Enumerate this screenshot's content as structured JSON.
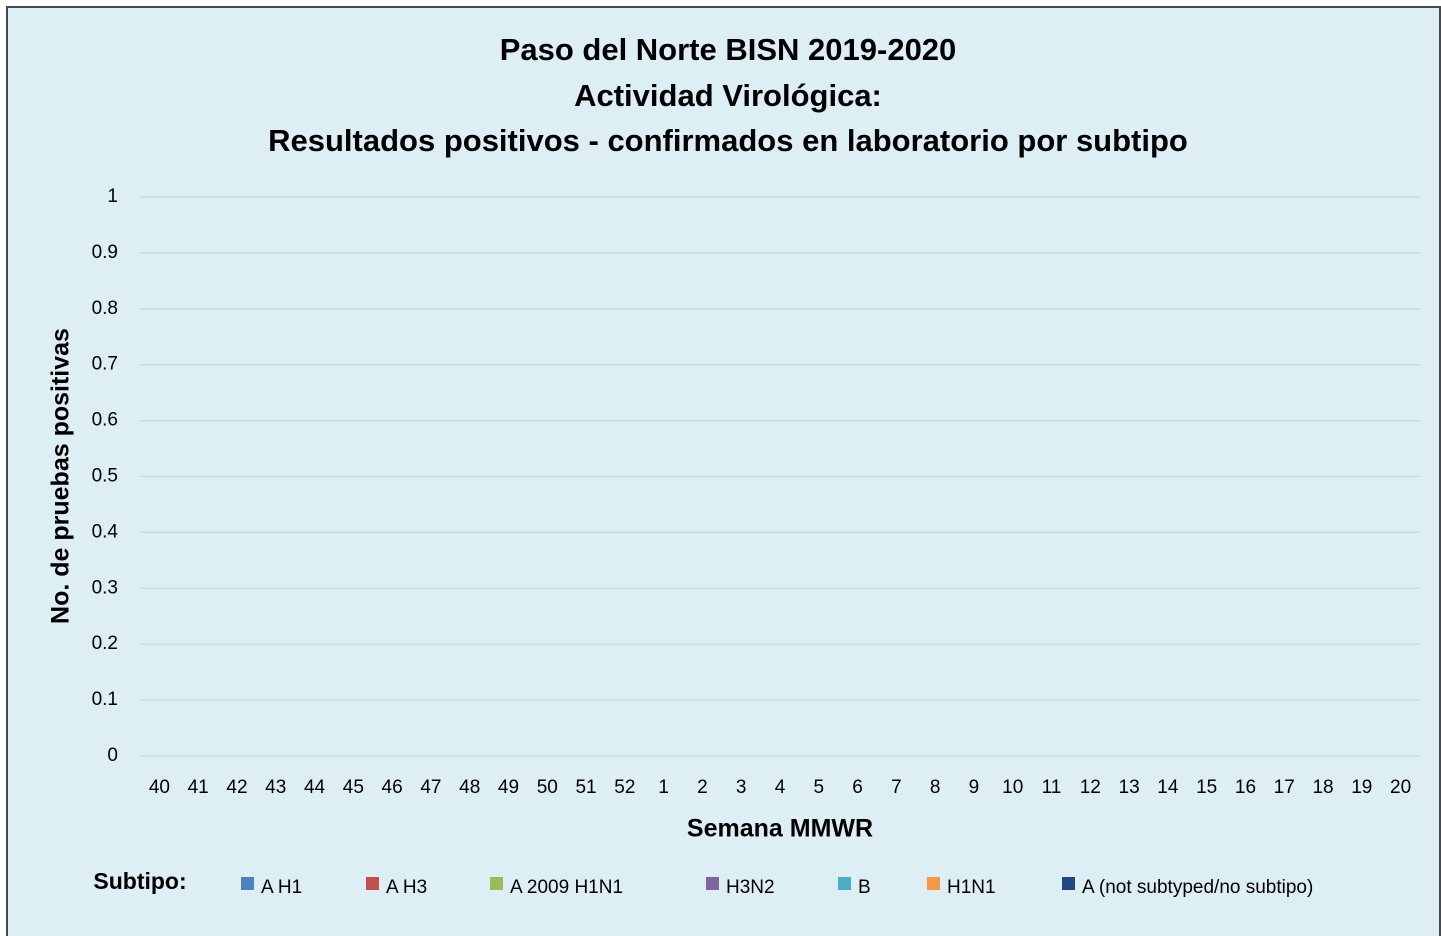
{
  "chart_data": {
    "type": "stacked_bar",
    "title": [
      "Paso del Norte BISN 2019-2020",
      "Actividad Virológica:",
      "Resultados positivos - confirmados en laboratorio por subtipo"
    ],
    "y_label": "No. de pruebas positivas",
    "x_label": "Semana MMWR",
    "legend_title": "Subtipo:",
    "categories": [
      40,
      41,
      42,
      43,
      44,
      45,
      46,
      47,
      48,
      49,
      50,
      51,
      52,
      1,
      2,
      3,
      4,
      5,
      6,
      7,
      8,
      9,
      10,
      11,
      12,
      13,
      14,
      15,
      16,
      17,
      18,
      19,
      20
    ],
    "series": [
      {
        "name": "A H1",
        "color": "#4f81bd",
        "values": [
          0,
          0,
          0,
          0,
          0,
          0,
          0,
          0,
          0,
          0,
          0,
          0,
          0,
          0,
          0,
          0,
          0,
          0,
          0,
          0,
          0,
          0,
          0,
          0,
          0,
          0,
          0,
          0,
          0,
          0,
          0,
          0,
          0
        ]
      },
      {
        "name": "A H3",
        "color": "#c0504d",
        "values": [
          0,
          0,
          0,
          0,
          0,
          0,
          0,
          0,
          0,
          0,
          0,
          0,
          0,
          0,
          0,
          0,
          0,
          0,
          0,
          0,
          0,
          0,
          0,
          0,
          0,
          0,
          0,
          0,
          0,
          0,
          0,
          0,
          0
        ]
      },
      {
        "name": "A 2009 H1N1",
        "color": "#9bbb59",
        "values": [
          0,
          0,
          0,
          0,
          0,
          0,
          0,
          0,
          0,
          0,
          0,
          0,
          0,
          0,
          0,
          0,
          0,
          0,
          0,
          0,
          0,
          0,
          0,
          0,
          0,
          0,
          0,
          0,
          0,
          0,
          0,
          0,
          0
        ]
      },
      {
        "name": "H3N2",
        "color": "#8064a2",
        "values": [
          0,
          0,
          0,
          0,
          0,
          0,
          0,
          0,
          0,
          0,
          0,
          0,
          0,
          0,
          0,
          0,
          0,
          0,
          0,
          0,
          0,
          0,
          0,
          0,
          0,
          0,
          0,
          0,
          0,
          0,
          0,
          0,
          0
        ]
      },
      {
        "name": "B",
        "color": "#4bacc6",
        "values": [
          0,
          0,
          0,
          0,
          0,
          0,
          0,
          0,
          0,
          0,
          0,
          0,
          0,
          0,
          0,
          0,
          0,
          0,
          0,
          0,
          0,
          0,
          0,
          0,
          0,
          0,
          0,
          0,
          0,
          0,
          0,
          0,
          0
        ]
      },
      {
        "name": "H1N1",
        "color": "#f79646",
        "values": [
          0,
          0,
          0,
          0,
          0,
          0,
          0,
          0,
          0,
          0,
          0,
          0,
          0,
          0,
          0,
          0,
          0,
          0,
          0,
          0,
          0,
          0,
          0,
          0,
          0,
          0,
          0,
          0,
          0,
          0,
          0,
          0,
          0
        ]
      },
      {
        "name": "A (not subtyped/no subtipo)",
        "color": "#1f497d",
        "values": [
          0,
          0,
          0,
          0,
          0,
          0,
          0,
          0,
          0,
          0,
          0,
          0,
          0,
          0,
          0,
          0,
          0,
          0,
          0,
          0,
          0,
          0,
          0,
          0,
          0,
          0,
          0,
          0,
          0,
          0,
          0,
          0,
          0
        ]
      }
    ],
    "ylim": [
      0,
      1
    ],
    "yticks": [
      0,
      0.1,
      0.2,
      0.3,
      0.4,
      0.5,
      0.6,
      0.7,
      0.8,
      0.9,
      1
    ],
    "grid": true
  }
}
